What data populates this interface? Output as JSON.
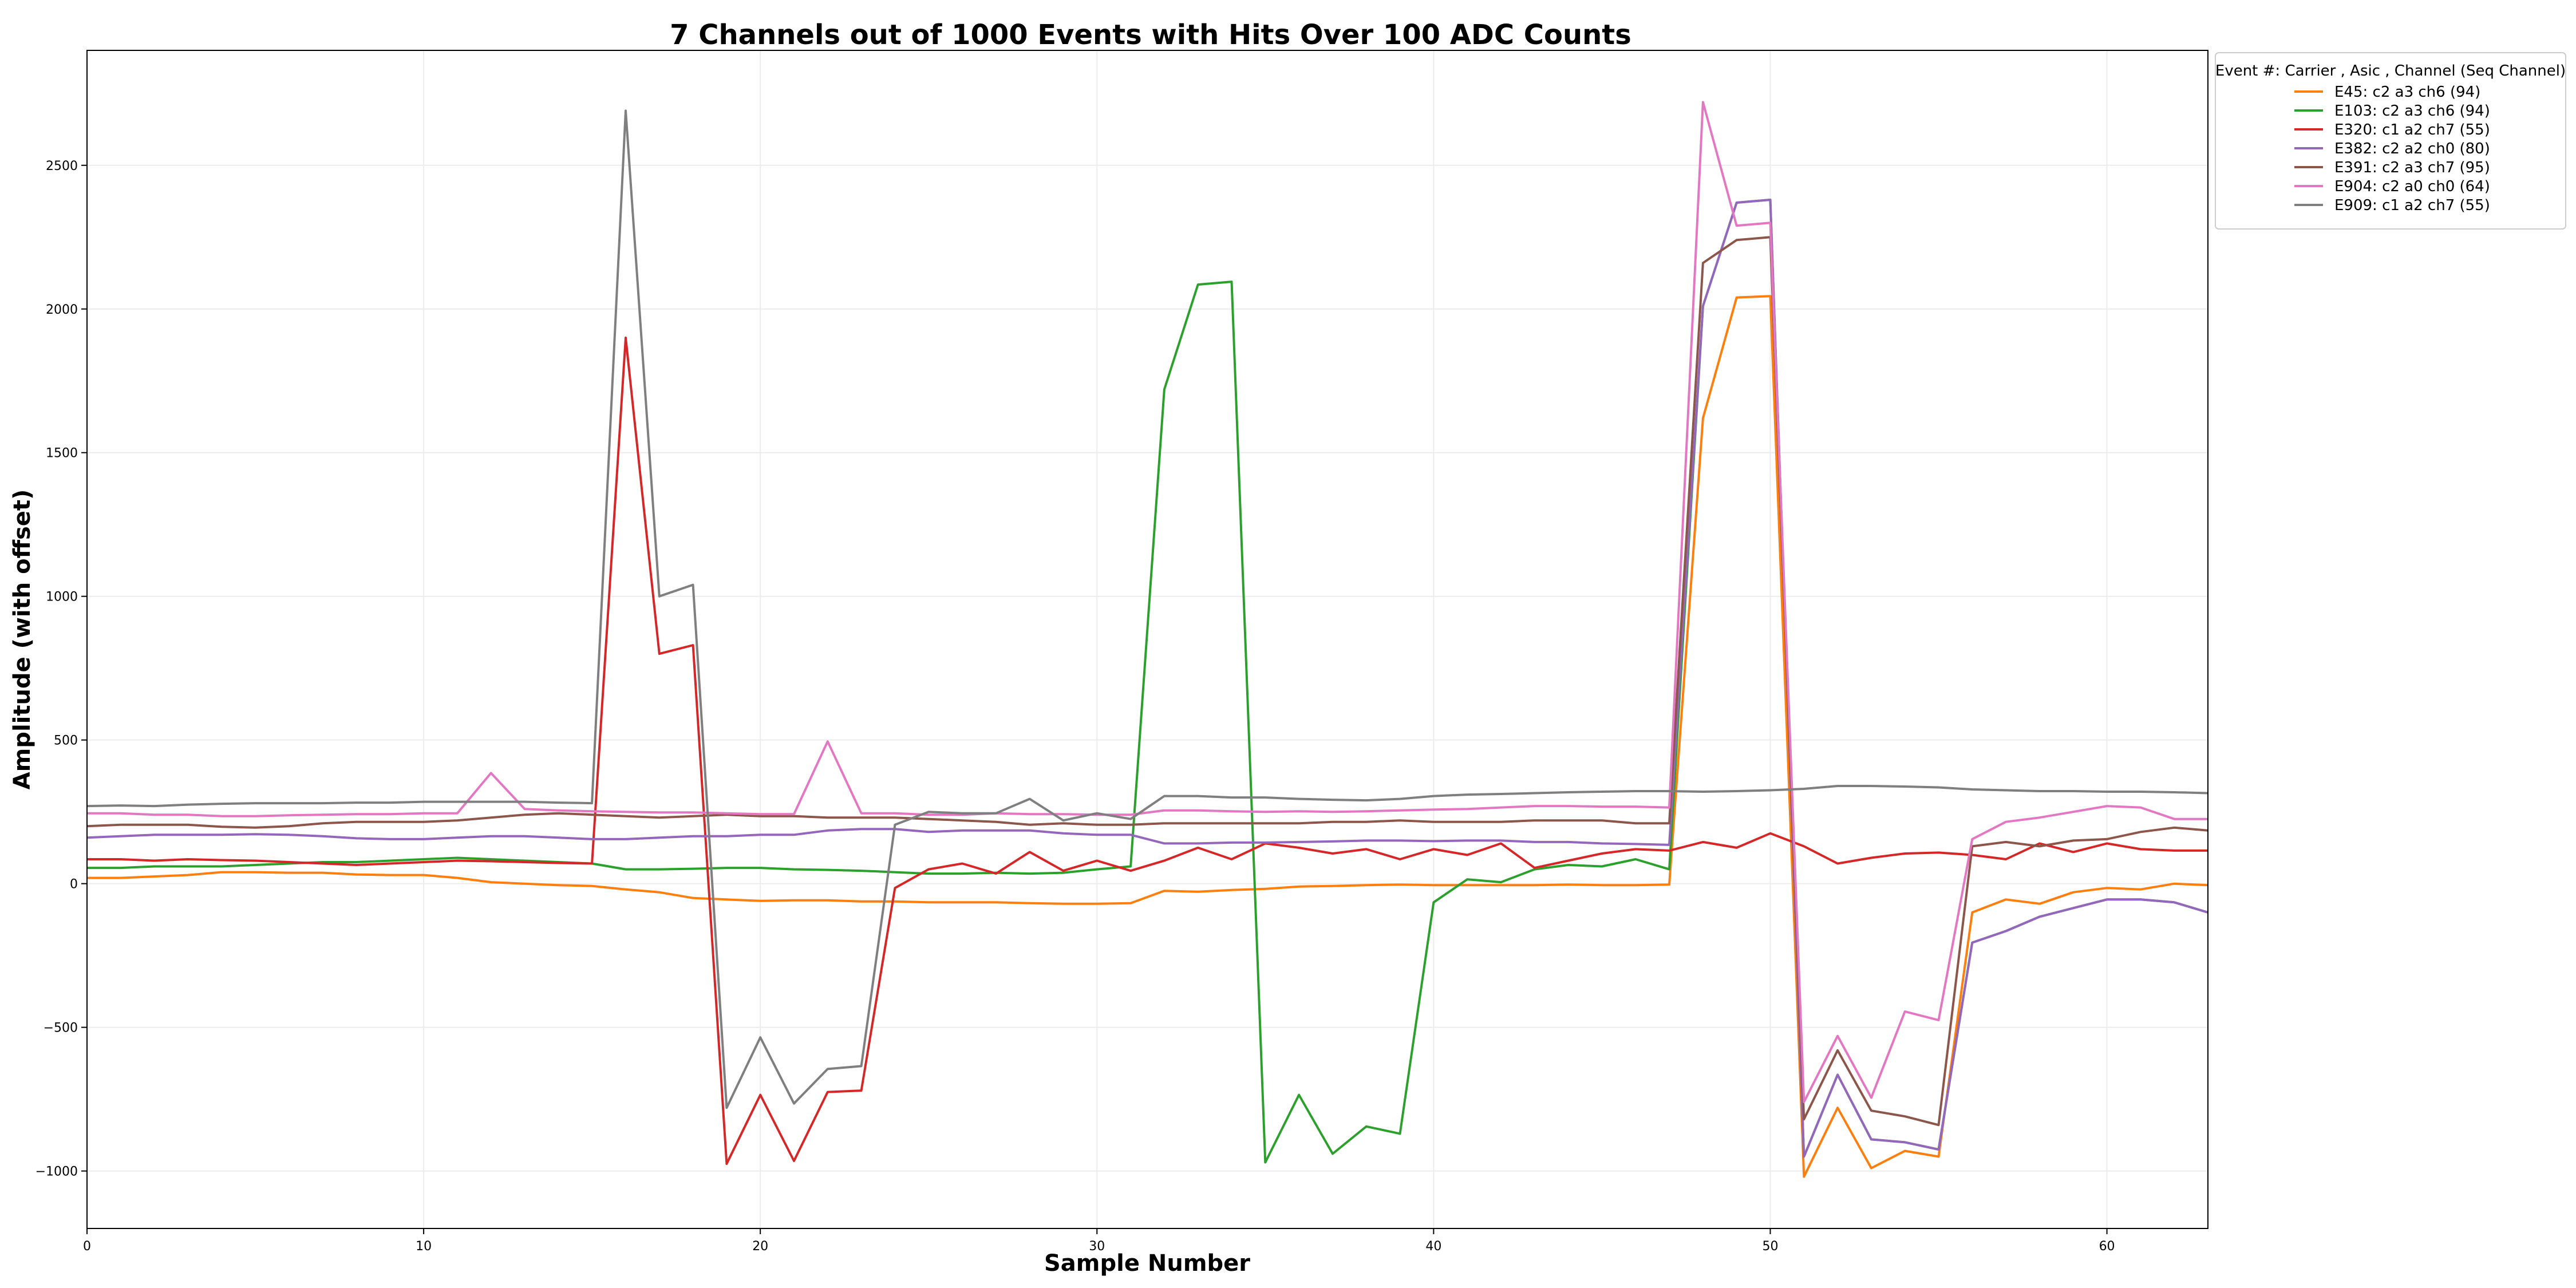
{
  "chart_data": {
    "type": "line",
    "title": "7 Channels out of 1000 Events with Hits Over 100 ADC Counts",
    "xlabel": "Sample Number",
    "ylabel": "Amplitude (with offset)",
    "xlim": [
      0,
      63
    ],
    "ylim": [
      -1200,
      2900
    ],
    "xticks": [
      0,
      10,
      20,
      30,
      40,
      50,
      60
    ],
    "yticks": [
      -1000,
      -500,
      0,
      500,
      1000,
      1500,
      2000,
      2500
    ],
    "ytick_labels": [
      "−1000",
      "−500",
      "0",
      "500",
      "1000",
      "1500",
      "2000",
      "2500"
    ],
    "grid": true,
    "legend": {
      "title": "Event #: Carrier , Asic , Channel (Seq Channel)",
      "placement": "outside-top-right"
    },
    "x": [
      0,
      1,
      2,
      3,
      4,
      5,
      6,
      7,
      8,
      9,
      10,
      11,
      12,
      13,
      14,
      15,
      16,
      17,
      18,
      19,
      20,
      21,
      22,
      23,
      24,
      25,
      26,
      27,
      28,
      29,
      30,
      31,
      32,
      33,
      34,
      35,
      36,
      37,
      38,
      39,
      40,
      41,
      42,
      43,
      44,
      45,
      46,
      47,
      48,
      49,
      50,
      51,
      52,
      53,
      54,
      55,
      56,
      57,
      58,
      59,
      60,
      61,
      62,
      63
    ],
    "series": [
      {
        "name": "E45: c2 a3 ch6 (94)",
        "color": "#ff7f0e",
        "values": [
          20,
          20,
          25,
          30,
          40,
          40,
          38,
          38,
          32,
          30,
          30,
          20,
          5,
          0,
          -5,
          -8,
          -20,
          -30,
          -50,
          -55,
          -60,
          -58,
          -58,
          -62,
          -62,
          -65,
          -65,
          -65,
          -68,
          -70,
          -70,
          -68,
          -25,
          -28,
          -22,
          -18,
          -10,
          -8,
          -5,
          -3,
          -5,
          -5,
          -5,
          -5,
          -3,
          -5,
          -5,
          -3,
          1620,
          2040,
          2045,
          -1020,
          -780,
          -990,
          -930,
          -950,
          -100,
          -55,
          -70,
          -30,
          -15,
          -20,
          0,
          -5
        ]
      },
      {
        "name": "E103: c2 a3 ch6 (94)",
        "color": "#2ca02c",
        "values": [
          55,
          55,
          60,
          60,
          60,
          65,
          70,
          75,
          75,
          80,
          85,
          90,
          85,
          80,
          75,
          70,
          50,
          50,
          52,
          55,
          55,
          50,
          48,
          45,
          40,
          35,
          35,
          38,
          35,
          38,
          50,
          60,
          1720,
          2085,
          2095,
          -970,
          -735,
          -940,
          -845,
          -870,
          -65,
          15,
          5,
          50,
          65,
          60,
          85,
          50,
          2010,
          2370,
          2380,
          -950,
          -665,
          -890,
          -900,
          -925,
          -205,
          -165,
          -115,
          -85,
          -55,
          -55,
          -65,
          -100
        ]
      },
      {
        "name": "E320: c1 a2 ch7 (55)",
        "color": "#d62728",
        "values": [
          85,
          85,
          80,
          85,
          82,
          80,
          75,
          70,
          65,
          70,
          75,
          80,
          78,
          75,
          72,
          70,
          1900,
          800,
          830,
          -975,
          -735,
          -965,
          -725,
          -720,
          -15,
          50,
          70,
          35,
          110,
          45,
          80,
          45,
          80,
          125,
          85,
          140,
          125,
          105,
          120,
          85,
          120,
          100,
          140,
          55,
          80,
          105,
          120,
          115,
          145,
          125,
          175,
          130,
          70,
          90,
          105,
          108,
          100,
          85,
          140,
          110,
          140,
          120,
          115,
          115
        ]
      },
      {
        "name": "E382: c2 a2 ch0 (80)",
        "color": "#9467bd",
        "values": [
          160,
          165,
          170,
          170,
          170,
          172,
          170,
          165,
          158,
          155,
          155,
          160,
          165,
          165,
          160,
          155,
          155,
          160,
          165,
          165,
          170,
          170,
          185,
          190,
          190,
          180,
          185,
          185,
          185,
          175,
          170,
          170,
          140,
          140,
          143,
          143,
          145,
          147,
          150,
          150,
          148,
          150,
          150,
          145,
          145,
          140,
          138,
          135,
          2010,
          2370,
          2380,
          -950,
          -665,
          -890,
          -900,
          -925,
          -205,
          -165,
          -115,
          -85,
          -55,
          -55,
          -65,
          -100
        ]
      },
      {
        "name": "E391: c2 a3 ch7 (95)",
        "color": "#8c564b",
        "values": [
          200,
          205,
          205,
          205,
          198,
          195,
          200,
          210,
          215,
          215,
          215,
          220,
          230,
          240,
          245,
          240,
          235,
          230,
          235,
          240,
          235,
          235,
          230,
          230,
          230,
          225,
          220,
          215,
          205,
          210,
          205,
          205,
          210,
          210,
          210,
          210,
          210,
          215,
          215,
          220,
          215,
          215,
          215,
          220,
          220,
          220,
          210,
          210,
          2160,
          2240,
          2250,
          -820,
          -580,
          -790,
          -810,
          -840,
          130,
          145,
          130,
          150,
          155,
          180,
          195,
          185
        ]
      },
      {
        "name": "E904: c2 a0 ch0 (64)",
        "color": "#e377c2",
        "values": [
          245,
          245,
          240,
          240,
          235,
          235,
          238,
          240,
          242,
          242,
          245,
          245,
          385,
          260,
          255,
          252,
          250,
          248,
          248,
          245,
          242,
          242,
          495,
          245,
          245,
          240,
          240,
          245,
          242,
          242,
          240,
          240,
          255,
          255,
          252,
          250,
          252,
          250,
          252,
          255,
          258,
          260,
          265,
          270,
          270,
          268,
          268,
          265,
          2720,
          2290,
          2300,
          -760,
          -530,
          -745,
          -445,
          -475,
          155,
          215,
          230,
          250,
          270,
          265,
          225,
          225
        ]
      },
      {
        "name": "E909: c1 a2 ch7 (55)",
        "color": "#7f7f7f",
        "values": [
          270,
          272,
          270,
          275,
          278,
          280,
          280,
          280,
          282,
          282,
          285,
          285,
          285,
          285,
          282,
          280,
          2690,
          1000,
          1040,
          -780,
          -535,
          -765,
          -645,
          -635,
          205,
          250,
          245,
          245,
          295,
          220,
          245,
          225,
          305,
          305,
          300,
          300,
          295,
          292,
          290,
          295,
          305,
          310,
          312,
          315,
          318,
          320,
          322,
          322,
          320,
          322,
          325,
          330,
          340,
          340,
          338,
          335,
          328,
          325,
          322,
          322,
          320,
          320,
          318,
          315
        ]
      }
    ]
  }
}
